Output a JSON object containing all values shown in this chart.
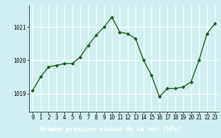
{
  "hours": [
    0,
    1,
    2,
    3,
    4,
    5,
    6,
    7,
    8,
    9,
    10,
    11,
    12,
    13,
    14,
    15,
    16,
    17,
    18,
    19,
    20,
    21,
    22,
    23
  ],
  "pressure": [
    1019.1,
    1019.5,
    1019.8,
    1019.85,
    1019.9,
    1019.9,
    1020.1,
    1020.45,
    1020.75,
    1021.0,
    1021.3,
    1020.85,
    1020.8,
    1020.65,
    1020.0,
    1019.55,
    1018.9,
    1019.15,
    1019.15,
    1019.2,
    1019.35,
    1020.0,
    1020.8,
    1021.1
  ],
  "line_color": "#1a5c1a",
  "marker": "D",
  "markersize": 2.5,
  "linewidth": 1.0,
  "bg_color": "#cff0f0",
  "grid_color": "#ffffff",
  "xlabel": "Graphe pression niveau de la mer (hPa)",
  "xlabel_color": "#ffffff",
  "xlabel_bg": "#5a9a5a",
  "ylabel_ticks": [
    1019,
    1020,
    1021
  ],
  "xlim": [
    -0.5,
    23.5
  ],
  "ylim": [
    1018.45,
    1021.65
  ],
  "tick_fontsize": 5.5,
  "xlabel_fontsize": 6.5,
  "bottom_bar_height": 0.13
}
